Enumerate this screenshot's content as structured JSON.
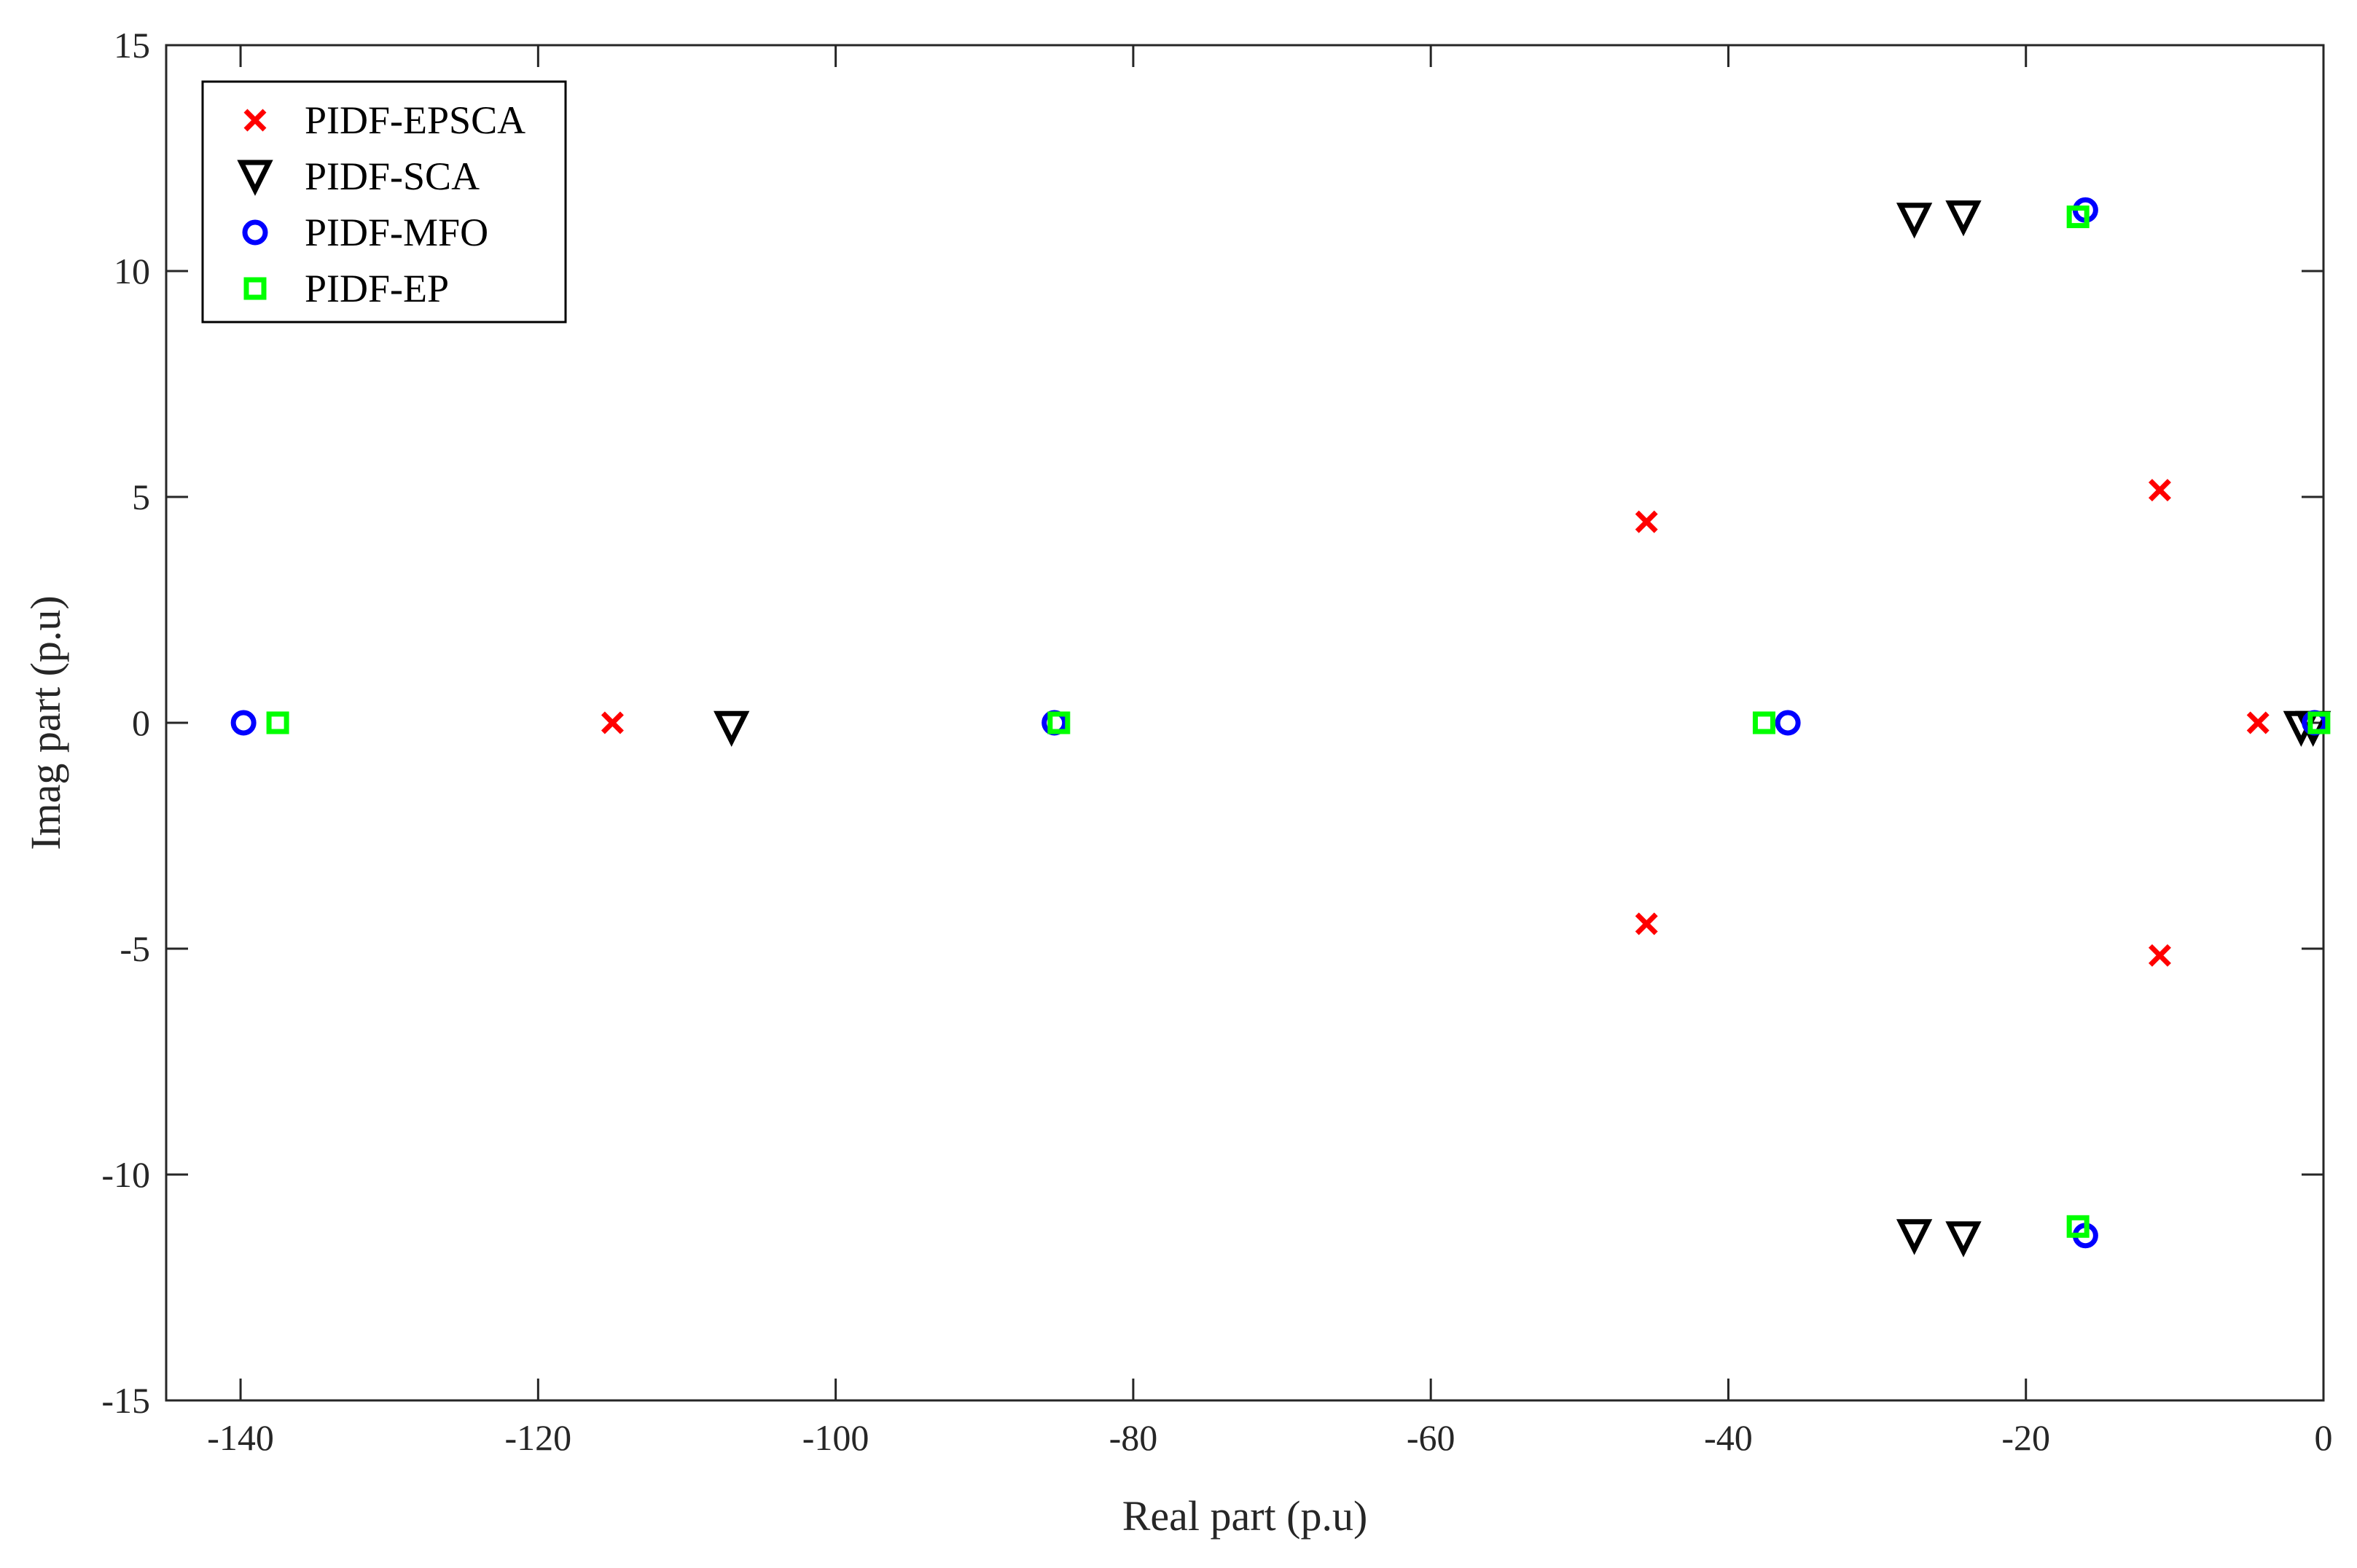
{
  "chart_data": {
    "type": "scatter",
    "xlabel": "Real part (p.u)",
    "ylabel": "Imag part (p.u)",
    "xlim": [
      -145,
      0
    ],
    "ylim": [
      -15,
      15
    ],
    "x_ticks": [
      -140,
      -120,
      -100,
      -80,
      -60,
      -40,
      -20,
      0
    ],
    "y_ticks": [
      -15,
      -10,
      -5,
      0,
      5,
      10,
      15
    ],
    "grid": false,
    "legend_position": "top-left",
    "series": [
      {
        "name": "PIDF-EPSCA",
        "marker": "x",
        "color": "#ff0000",
        "points": [
          [
            -115,
            0
          ],
          [
            -45.5,
            4.45
          ],
          [
            -45.5,
            -4.45
          ],
          [
            -11,
            5.15
          ],
          [
            -11,
            -5.15
          ],
          [
            -4.4,
            0
          ]
        ]
      },
      {
        "name": "PIDF-SCA",
        "marker": "triangle-down",
        "color": "#000000",
        "points": [
          [
            -107,
            -0.1
          ],
          [
            -27.5,
            11.15
          ],
          [
            -24.2,
            11.2
          ],
          [
            -27.5,
            -11.35
          ],
          [
            -24.2,
            -11.4
          ],
          [
            -1.5,
            -0.1
          ],
          [
            -0.7,
            -0.1
          ]
        ]
      },
      {
        "name": "PIDF-MFO",
        "marker": "circle",
        "color": "#0000ff",
        "points": [
          [
            -139.8,
            0
          ],
          [
            -85.3,
            0
          ],
          [
            -36,
            0
          ],
          [
            -16,
            11.35
          ],
          [
            -16,
            -11.35
          ],
          [
            -0.6,
            0
          ]
        ]
      },
      {
        "name": "PIDF-EP",
        "marker": "square",
        "color": "#00ff00",
        "points": [
          [
            -137.5,
            0
          ],
          [
            -85,
            0
          ],
          [
            -37.6,
            0
          ],
          [
            -16.5,
            11.2
          ],
          [
            -16.5,
            -11.15
          ],
          [
            -0.3,
            0
          ]
        ]
      }
    ]
  }
}
